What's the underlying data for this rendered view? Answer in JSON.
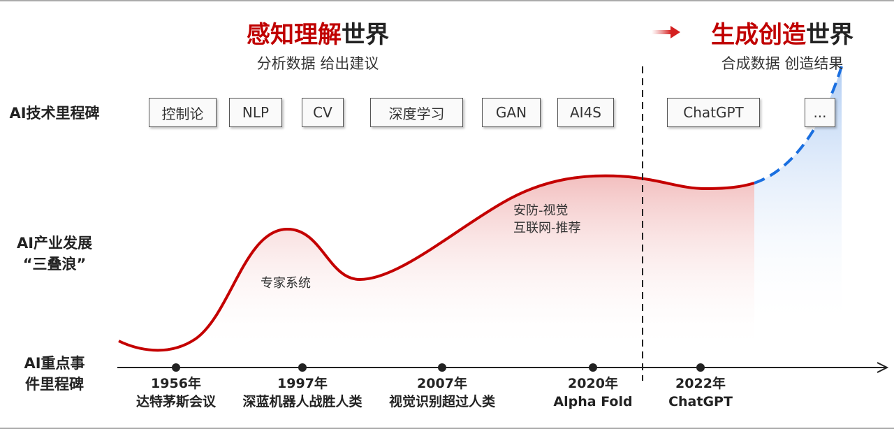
{
  "header_left": {
    "title_red": "感知理解",
    "title_black": "世界",
    "subtitle": "分析数据 给出建议"
  },
  "header_right": {
    "title_red": "生成创造",
    "title_black": "世界",
    "subtitle": "合成数据 创造结果"
  },
  "row_labels": {
    "tech": "AI技术里程碑",
    "industry_line1": "AI产业发展",
    "industry_line2": "“三叠浪”",
    "events_line1": "AI重点事",
    "events_line2": "件里程碑"
  },
  "tech_milestones": [
    "控制论",
    "NLP",
    "CV",
    "深度学习",
    "GAN",
    "AI4S",
    "ChatGPT",
    "..."
  ],
  "wave_notes": {
    "expert": "专家系统",
    "security": "安防-视觉",
    "internet": "互联网-推荐"
  },
  "events": [
    {
      "year": "1956年",
      "desc": "达特茅斯会议"
    },
    {
      "year": "1997年",
      "desc": "深蓝机器人战胜人类"
    },
    {
      "year": "2007年",
      "desc": "视觉识别超过人类"
    },
    {
      "year": "2020年",
      "desc": "Alpha Fold"
    },
    {
      "year": "2022年",
      "desc": "ChatGPT"
    }
  ],
  "colors": {
    "accent_red": "#c00000",
    "curve_red": "#c40000",
    "future_blue": "#1a6fe0"
  }
}
